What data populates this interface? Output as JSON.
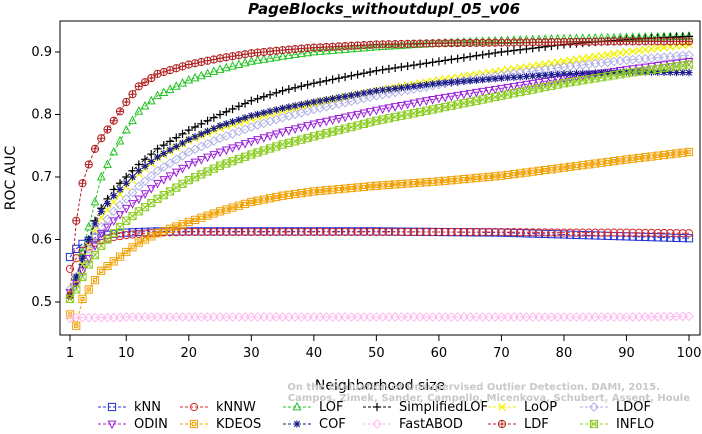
{
  "chart_data": {
    "type": "line",
    "title": "PageBlocks_withoutdupl_05_v06",
    "xlabel": "Neighborhood size",
    "ylabel": "ROC AUC",
    "xlim": [
      1,
      100
    ],
    "ylim": [
      0.45,
      0.935
    ],
    "xticks": [
      1,
      10,
      20,
      30,
      40,
      50,
      60,
      70,
      80,
      90,
      100
    ],
    "yticks": [
      0.5,
      0.6,
      0.7,
      0.8,
      0.9
    ],
    "ytick_labels": [
      "0.5",
      "0.6",
      "0.7",
      "0.8",
      "0.9"
    ],
    "grid": false,
    "legend_position": "bottom",
    "x": [
      1,
      2,
      3,
      4,
      5,
      6,
      8,
      10,
      12,
      15,
      20,
      25,
      30,
      35,
      40,
      50,
      60,
      70,
      80,
      90,
      100
    ],
    "series": [
      {
        "name": "kNN",
        "color": "#1f2fd6",
        "marker": "square",
        "values": [
          0.572,
          0.585,
          0.593,
          0.598,
          0.603,
          0.606,
          0.609,
          0.611,
          0.612,
          0.613,
          0.613,
          0.613,
          0.613,
          0.613,
          0.613,
          0.613,
          0.612,
          0.611,
          0.608,
          0.605,
          0.602
        ]
      },
      {
        "name": "kNNW",
        "color": "#d62828",
        "marker": "circle",
        "values": [
          0.553,
          0.57,
          0.582,
          0.589,
          0.595,
          0.599,
          0.604,
          0.607,
          0.609,
          0.611,
          0.612,
          0.612,
          0.612,
          0.612,
          0.612,
          0.612,
          0.612,
          0.612,
          0.611,
          0.611,
          0.61
        ]
      },
      {
        "name": "LOF",
        "color": "#22c322",
        "marker": "triangle",
        "values": [
          0.512,
          0.54,
          0.58,
          0.62,
          0.66,
          0.7,
          0.74,
          0.775,
          0.805,
          0.83,
          0.855,
          0.872,
          0.885,
          0.893,
          0.9,
          0.908,
          0.914,
          0.918,
          0.921,
          0.923,
          0.925
        ]
      },
      {
        "name": "SimplifiedLOF",
        "color": "#000000",
        "marker": "plus",
        "values": [
          0.51,
          0.53,
          0.56,
          0.6,
          0.63,
          0.65,
          0.68,
          0.7,
          0.72,
          0.745,
          0.775,
          0.8,
          0.822,
          0.838,
          0.85,
          0.87,
          0.885,
          0.9,
          0.912,
          0.92,
          0.925
        ]
      },
      {
        "name": "LoOP",
        "color": "#f2f200",
        "marker": "x",
        "values": [
          0.515,
          0.535,
          0.56,
          0.59,
          0.615,
          0.635,
          0.66,
          0.685,
          0.705,
          0.73,
          0.758,
          0.778,
          0.793,
          0.806,
          0.818,
          0.838,
          0.855,
          0.87,
          0.885,
          0.9,
          0.912
        ]
      },
      {
        "name": "LDOF",
        "color": "#b0b0e8",
        "marker": "diamond",
        "values": [
          0.52,
          0.54,
          0.56,
          0.585,
          0.605,
          0.62,
          0.645,
          0.665,
          0.685,
          0.71,
          0.74,
          0.762,
          0.78,
          0.795,
          0.808,
          0.83,
          0.848,
          0.863,
          0.876,
          0.887,
          0.895
        ]
      },
      {
        "name": "ODIN",
        "color": "#9a20d8",
        "marker": "triangle-down",
        "values": [
          0.515,
          0.53,
          0.55,
          0.57,
          0.59,
          0.61,
          0.63,
          0.65,
          0.665,
          0.69,
          0.72,
          0.74,
          0.757,
          0.772,
          0.785,
          0.807,
          0.826,
          0.842,
          0.858,
          0.872,
          0.885
        ]
      },
      {
        "name": "KDEOS",
        "color": "#f0a000",
        "marker": "boxsquare",
        "values": [
          0.48,
          0.462,
          0.505,
          0.52,
          0.535,
          0.55,
          0.565,
          0.58,
          0.595,
          0.61,
          0.628,
          0.645,
          0.66,
          0.67,
          0.677,
          0.686,
          0.693,
          0.702,
          0.715,
          0.728,
          0.74
        ]
      },
      {
        "name": "COF",
        "color": "#1a1a8a",
        "marker": "asterisk",
        "values": [
          0.51,
          0.54,
          0.57,
          0.6,
          0.625,
          0.645,
          0.67,
          0.69,
          0.71,
          0.732,
          0.76,
          0.782,
          0.798,
          0.81,
          0.82,
          0.838,
          0.85,
          0.858,
          0.865,
          0.868,
          0.867
        ]
      },
      {
        "name": "FastABOD",
        "color": "#ffb8f0",
        "marker": "diamond",
        "values": [
          0.474,
          0.475,
          0.475,
          0.475,
          0.475,
          0.475,
          0.475,
          0.476,
          0.476,
          0.476,
          0.476,
          0.476,
          0.476,
          0.476,
          0.476,
          0.476,
          0.476,
          0.476,
          0.476,
          0.476,
          0.477
        ]
      },
      {
        "name": "LDF",
        "color": "#b02020",
        "marker": "circle-plus",
        "values": [
          0.51,
          0.63,
          0.69,
          0.72,
          0.745,
          0.762,
          0.79,
          0.82,
          0.845,
          0.865,
          0.88,
          0.89,
          0.898,
          0.903,
          0.907,
          0.912,
          0.914,
          0.915,
          0.916,
          0.917,
          0.917
        ]
      },
      {
        "name": "INFLO",
        "color": "#8ccc22",
        "marker": "box-x",
        "values": [
          0.505,
          0.52,
          0.54,
          0.56,
          0.575,
          0.59,
          0.61,
          0.63,
          0.645,
          0.665,
          0.695,
          0.718,
          0.736,
          0.752,
          0.765,
          0.79,
          0.81,
          0.83,
          0.85,
          0.866,
          0.88
        ]
      }
    ],
    "credit_lines": [
      "Campos, Zimek, Sander, Campello, Micenkova, Schubert, Assent, Houle",
      "On the Evaluation of Unsupervised Outlier Detection. DAMI, 2015."
    ]
  }
}
